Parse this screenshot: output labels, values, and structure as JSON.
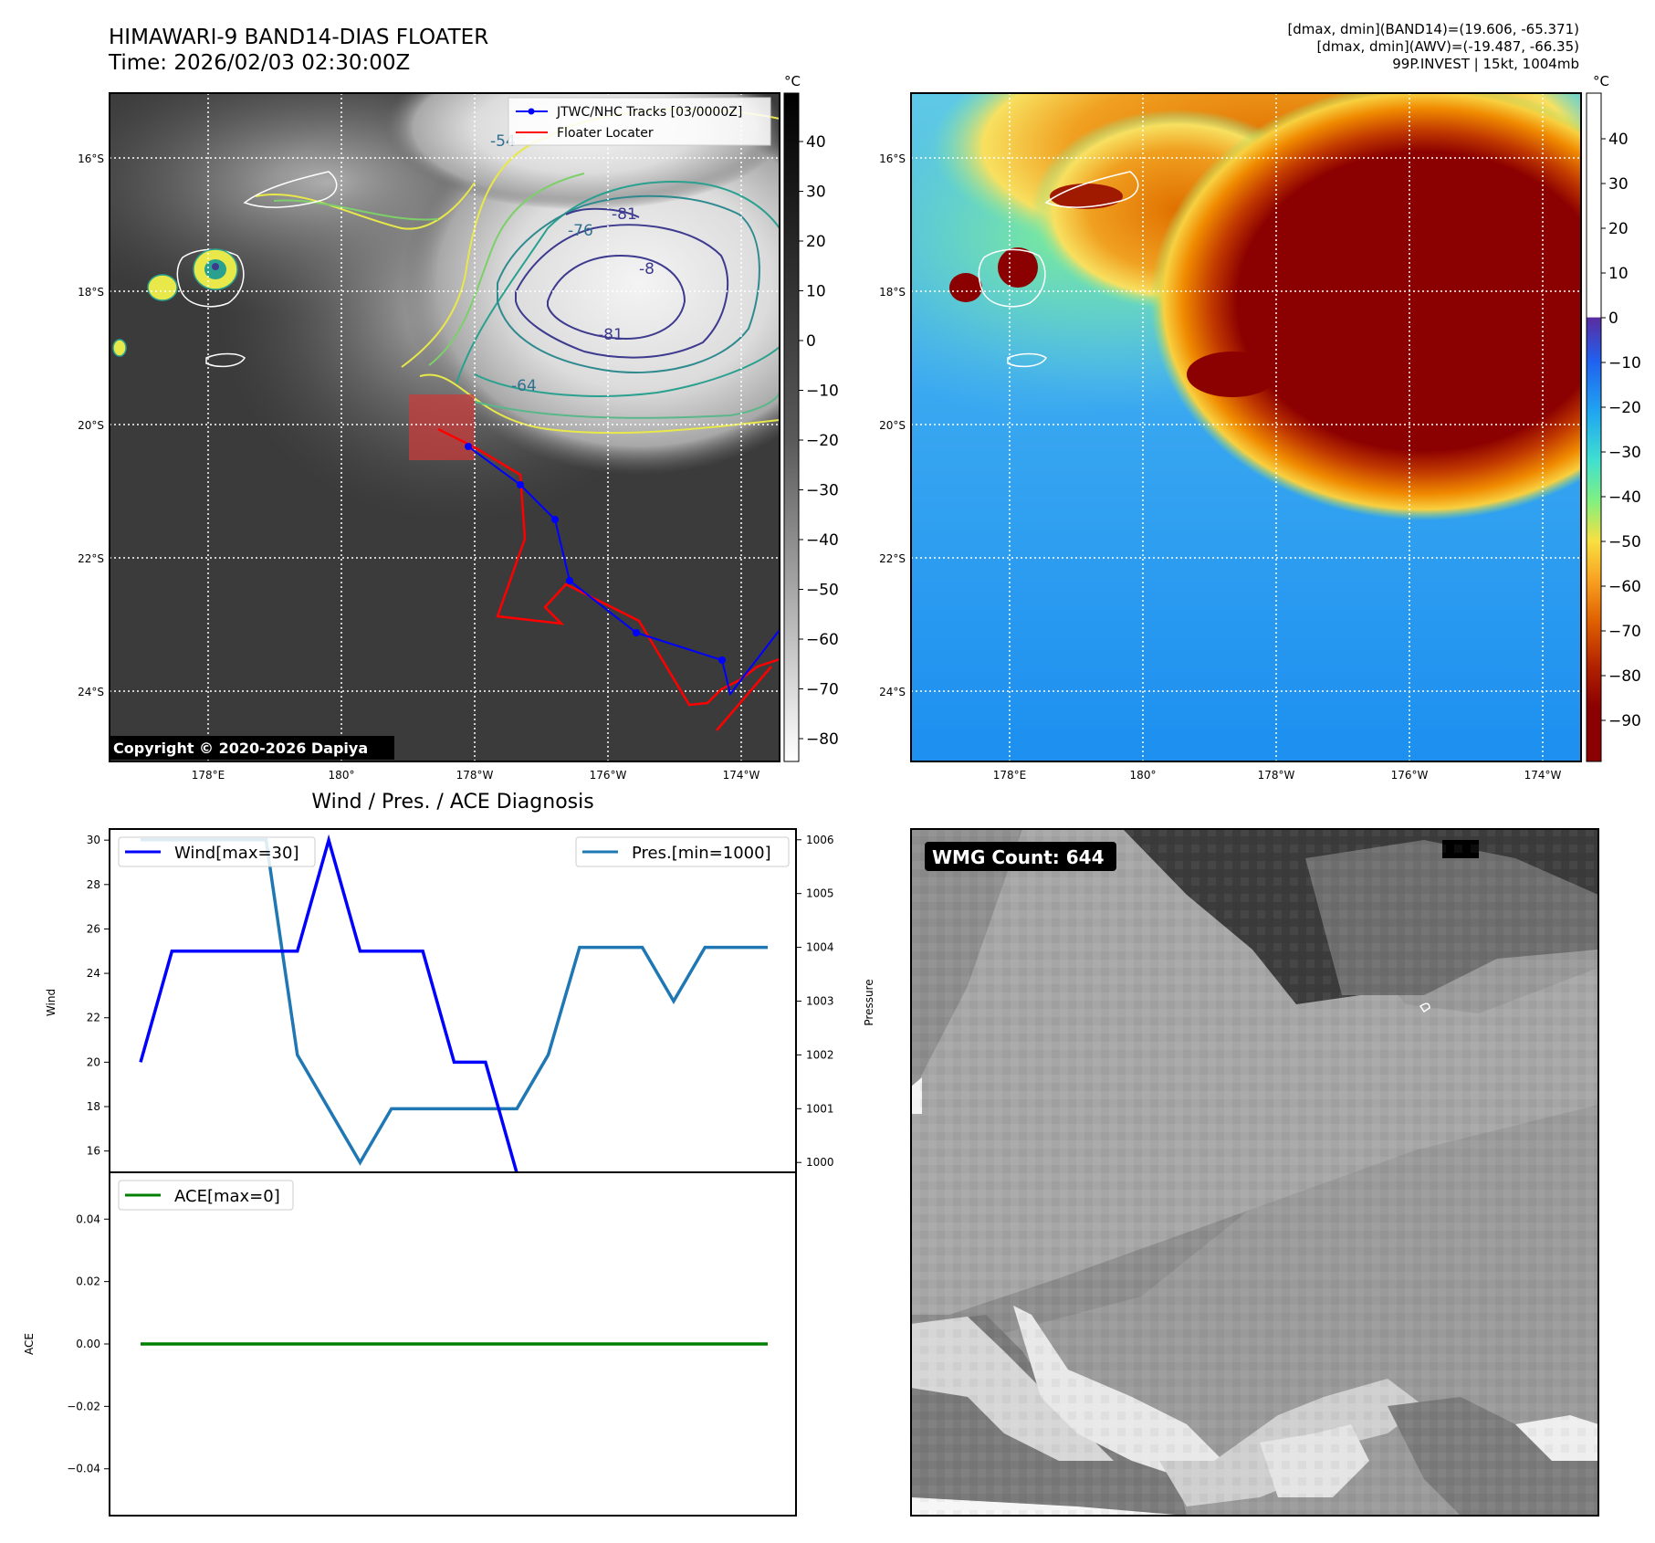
{
  "header": {
    "title_line1": "HIMAWARI-9 BAND14-DIAS FLOATER",
    "title_line2": "Time: 2026/02/03 02:30:00Z",
    "info_line1": "[dmax, dmin](BAND14)=(19.606, -65.371)",
    "info_line2": "[dmax, dmin](AWV)=(-19.487, -66.35)",
    "info_line3": "99P.INVEST | 15kt, 1004mb"
  },
  "map_left": {
    "lat_labels": [
      "16°S",
      "18°S",
      "20°S",
      "22°S",
      "24°S"
    ],
    "lon_labels": [
      "178°E",
      "180°",
      "178°W",
      "176°W",
      "174°W"
    ],
    "legend": [
      "JTWC/NHC Tracks [03/0000Z]",
      "Floater Locater"
    ],
    "contour_labels": [
      "-54",
      "-76",
      "-81",
      "-8",
      "-81",
      "-64"
    ],
    "copyright": "Copyright © 2020-2026 Dapiya",
    "colorbar_unit": "°C",
    "colorbar_ticks": [
      "40",
      "30",
      "20",
      "10",
      "0",
      "−10",
      "−20",
      "−30",
      "−40",
      "−50",
      "−60",
      "−70",
      "−80"
    ],
    "colors": {
      "track": "#0000ff",
      "locator": "#ff0000"
    }
  },
  "map_right": {
    "lat_labels": [
      "16°S",
      "18°S",
      "20°S",
      "22°S",
      "24°S"
    ],
    "lon_labels": [
      "178°E",
      "180°",
      "178°W",
      "176°W",
      "174°W"
    ],
    "colorbar_unit": "°C",
    "colorbar_ticks": [
      "40",
      "30",
      "20",
      "10",
      "0",
      "−10",
      "−20",
      "−30",
      "−40",
      "−50",
      "−60",
      "−70",
      "−80",
      "−90"
    ]
  },
  "diag": {
    "title": "Wind / Pres. / ACE Diagnosis",
    "wind_legend": "Wind[max=30]",
    "pres_legend": "Pres.[min=1000]",
    "ace_legend": "ACE[max=0]",
    "wind_label": "Wind",
    "pres_label": "Pressure",
    "ace_label": "ACE",
    "wind_ticks": [
      "30",
      "28",
      "26",
      "24",
      "22",
      "20",
      "18",
      "16"
    ],
    "pres_ticks": [
      "1006",
      "1005",
      "1004",
      "1003",
      "1002",
      "1001",
      "1000"
    ],
    "ace_ticks": [
      "0.04",
      "0.02",
      "0.00",
      "−0.02",
      "−0.04"
    ]
  },
  "wmg": {
    "label": "WMG Count: 644"
  },
  "chart_data": [
    {
      "type": "line",
      "title": "Wind / Pres. / ACE Diagnosis",
      "ylabel": "Wind",
      "ylim": [
        15,
        30.5
      ],
      "x": [
        0,
        1,
        2,
        3,
        4,
        5,
        6,
        7,
        8,
        9,
        10,
        11,
        12,
        13,
        14,
        15,
        16,
        17,
        18,
        19,
        20
      ],
      "series": [
        {
          "name": "Wind[max=30]",
          "color": "#0000ff",
          "values": [
            20,
            25,
            25,
            25,
            25,
            25,
            30,
            25,
            25,
            25,
            20,
            20,
            15,
            15,
            15,
            15,
            15,
            15,
            15,
            15,
            15
          ]
        }
      ]
    },
    {
      "type": "line",
      "ylabel": "Pressure",
      "ylim": [
        999.8,
        1006.2
      ],
      "x": [
        0,
        1,
        2,
        3,
        4,
        5,
        6,
        7,
        8,
        9,
        10,
        11,
        12,
        13,
        14,
        15,
        16,
        17,
        18,
        19,
        20
      ],
      "series": [
        {
          "name": "Pres.[min=1000]",
          "color": "#1f77b4",
          "values": [
            1006,
            1006,
            1006,
            1006,
            1006,
            1002,
            1001,
            1000,
            1001,
            1001,
            1001,
            1001,
            1001,
            1002,
            1004,
            1004,
            1004,
            1003,
            1004,
            1004,
            1004
          ]
        }
      ]
    },
    {
      "type": "line",
      "ylabel": "ACE",
      "ylim": [
        -0.055,
        0.055
      ],
      "x": [
        0,
        1,
        2,
        3,
        4,
        5,
        6,
        7,
        8,
        9,
        10,
        11,
        12,
        13,
        14,
        15,
        16,
        17,
        18,
        19,
        20
      ],
      "series": [
        {
          "name": "ACE[max=0]",
          "color": "#008000",
          "values": [
            0,
            0,
            0,
            0,
            0,
            0,
            0,
            0,
            0,
            0,
            0,
            0,
            0,
            0,
            0,
            0,
            0,
            0,
            0,
            0,
            0
          ]
        }
      ]
    }
  ]
}
